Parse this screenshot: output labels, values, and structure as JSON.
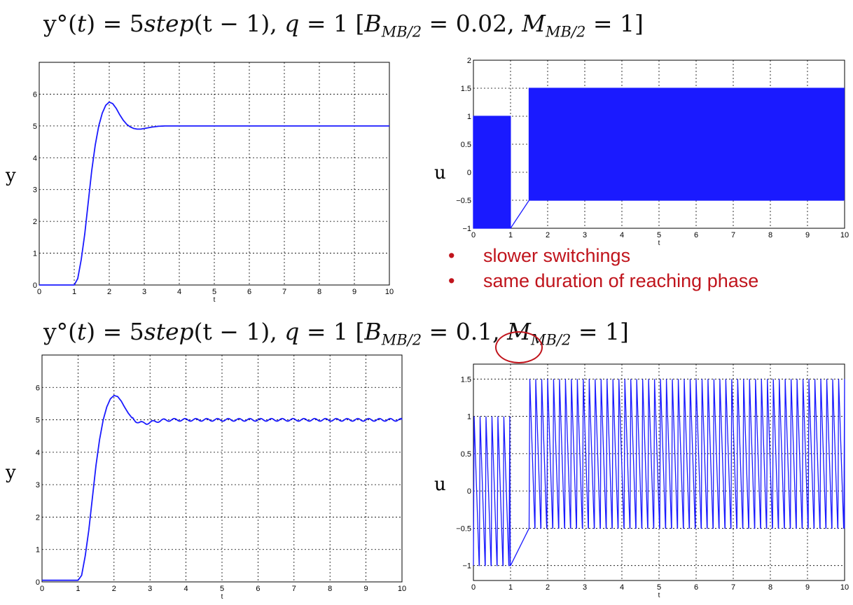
{
  "headings": {
    "top": {
      "prefix": "y°(",
      "t1": "t",
      "mid": ") = 5",
      "step": "step",
      "arg": "(t − 1),",
      "q": "q",
      "qval": " = 1 [",
      "B": "B",
      "Bsub": "MB/2",
      "Bval": " = 0.02, ",
      "M": "M",
      "Msub": "MB/2",
      "Mval": " = 1]"
    },
    "bottom": {
      "prefix": "y°(",
      "t1": "t",
      "mid": ") = 5",
      "step": "step",
      "arg": "(t − 1),",
      "q": "q",
      "qval": " = 1 [",
      "B": "B",
      "Bsub": "MB/2",
      "Bval": " = 0.1, ",
      "M": "M",
      "Msub": "MB/2",
      "Mval": " = 1]"
    }
  },
  "labels": {
    "y_top": "y",
    "u_top": "u",
    "y_bottom": "y",
    "u_bottom": "u"
  },
  "bullets": [
    "slower switchings",
    "same duration of reaching phase"
  ],
  "colors": {
    "line": "#1a1aff",
    "bullet": "#c0141c",
    "grid": "#000000"
  },
  "chart_data": [
    {
      "id": "y-top",
      "type": "line",
      "xlabel": "t",
      "ylabel": "",
      "xlim": [
        0,
        10
      ],
      "ylim": [
        0,
        7
      ],
      "xticks": [
        0,
        1,
        2,
        3,
        4,
        5,
        6,
        7,
        8,
        9,
        10
      ],
      "yticks": [
        0,
        1,
        2,
        3,
        4,
        5,
        6
      ],
      "grid": true,
      "series": [
        {
          "x": [
            0,
            1,
            1.1,
            1.2,
            1.3,
            1.4,
            1.5,
            1.6,
            1.7,
            1.8,
            1.9,
            2.0,
            2.1,
            2.2,
            2.3,
            2.4,
            2.5,
            2.6,
            2.7,
            2.8,
            2.9,
            3.0,
            3.2,
            3.4,
            3.6,
            3.8,
            4,
            5,
            6,
            7,
            8,
            9,
            10
          ],
          "y": [
            0,
            0,
            0.2,
            0.8,
            1.6,
            2.6,
            3.6,
            4.4,
            5.0,
            5.4,
            5.65,
            5.75,
            5.7,
            5.55,
            5.35,
            5.18,
            5.05,
            4.97,
            4.92,
            4.9,
            4.9,
            4.92,
            4.96,
            4.99,
            5.0,
            5.0,
            5.0,
            5.0,
            5.0,
            5.0,
            5.0,
            5.0,
            5.0
          ]
        }
      ]
    },
    {
      "id": "u-top",
      "type": "line",
      "xlabel": "t",
      "ylabel": "",
      "xlim": [
        0,
        10
      ],
      "ylim": [
        -1,
        2
      ],
      "xticks": [
        0,
        1,
        2,
        3,
        4,
        5,
        6,
        7,
        8,
        9,
        10
      ],
      "yticks": [
        -1,
        -0.5,
        0,
        0.5,
        1,
        1.5,
        2
      ],
      "ytick_labels": [
        "−1",
        "−0.5",
        "0",
        "0.5",
        "1",
        "1.5",
        "2"
      ],
      "grid": true,
      "switching": {
        "phase1": {
          "t_start": 0,
          "t_end": 1,
          "high": 1,
          "low": -1,
          "period": 0.035
        },
        "ramp": {
          "t_start": 1,
          "t_end": 1.5,
          "from": -1,
          "to": -0.5
        },
        "phase2": {
          "t_start": 1.5,
          "t_end": 10,
          "high": 1.5,
          "low": -0.5,
          "period": 0.035
        }
      }
    },
    {
      "id": "y-bottom",
      "type": "line",
      "xlabel": "t",
      "ylabel": "",
      "xlim": [
        0,
        10
      ],
      "ylim": [
        0,
        7
      ],
      "xticks": [
        0,
        1,
        2,
        3,
        4,
        5,
        6,
        7,
        8,
        9,
        10
      ],
      "yticks": [
        0,
        1,
        2,
        3,
        4,
        5,
        6
      ],
      "grid": true,
      "ripple_amplitude": 0.04,
      "series": [
        {
          "x": [
            0,
            1,
            1.1,
            1.2,
            1.3,
            1.4,
            1.5,
            1.6,
            1.7,
            1.8,
            1.9,
            2.0,
            2.1,
            2.2,
            2.3,
            2.4,
            2.5,
            2.6,
            2.7,
            2.8,
            2.9,
            3.0,
            3.2,
            3.4,
            3.6,
            3.8,
            4,
            5,
            6,
            7,
            8,
            9,
            10
          ],
          "y": [
            0.05,
            0.05,
            0.2,
            0.8,
            1.6,
            2.6,
            3.6,
            4.4,
            5.0,
            5.4,
            5.65,
            5.75,
            5.72,
            5.58,
            5.38,
            5.2,
            5.06,
            4.97,
            4.92,
            4.9,
            4.9,
            4.92,
            4.96,
            4.99,
            5.0,
            5.0,
            5.0,
            5.0,
            5.0,
            5.0,
            5.0,
            5.0,
            5.0
          ]
        }
      ]
    },
    {
      "id": "u-bottom",
      "type": "line",
      "xlabel": "t",
      "ylabel": "",
      "xlim": [
        0,
        10
      ],
      "ylim": [
        -1.2,
        1.7
      ],
      "xticks": [
        0,
        1,
        2,
        3,
        4,
        5,
        6,
        7,
        8,
        9,
        10
      ],
      "yticks": [
        -1,
        -0.5,
        0,
        0.5,
        1,
        1.5
      ],
      "ytick_labels": [
        "−1",
        "−0.5",
        "0",
        "0.5",
        "1",
        "1.5"
      ],
      "grid": true,
      "switching": {
        "phase1": {
          "t_start": 0,
          "t_end": 1,
          "high": 1,
          "low": -1,
          "period": 0.16
        },
        "ramp": {
          "t_start": 1,
          "t_end": 1.5,
          "from": -1,
          "to": -0.5
        },
        "phase2": {
          "t_start": 1.5,
          "t_end": 10,
          "high": 1.5,
          "low": -0.5,
          "period": 0.16
        }
      }
    }
  ]
}
